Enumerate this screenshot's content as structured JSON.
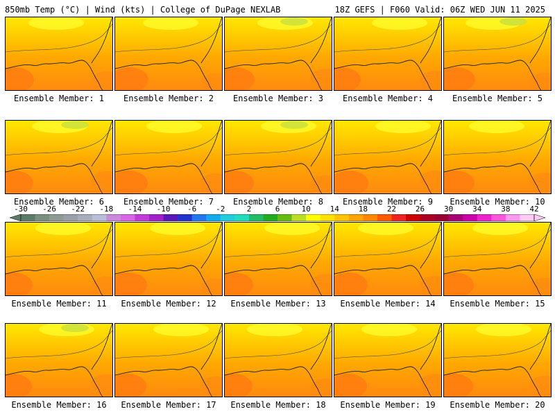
{
  "header": {
    "left": "850mb Temp (°C) | Wind (kts) | College of DuPage NEXLAB",
    "right": "18Z GEFS | F060 Valid: 06Z WED JUN 11 2025"
  },
  "colorbar": {
    "labels": [
      "-30",
      "-26",
      "-22",
      "-18",
      "-14",
      "-10",
      "-6",
      "-2",
      "2",
      "6",
      "10",
      "14",
      "18",
      "22",
      "26",
      "30",
      "34",
      "38",
      "42"
    ],
    "colors": [
      "#5e7a6a",
      "#7a8f80",
      "#8e9a94",
      "#9aa0a8",
      "#a7adbd",
      "#b7bfd8",
      "#cc88dd",
      "#d666e6",
      "#c23bd6",
      "#9e22c8",
      "#5a18b8",
      "#2233cc",
      "#2277ee",
      "#11aaee",
      "#22ccdd",
      "#22ddbb",
      "#22bb66",
      "#22aa22",
      "#66bb11",
      "#bbdd22",
      "#ffff00",
      "#ffe000",
      "#ffc400",
      "#ffa400",
      "#ff8800",
      "#ff5a00",
      "#ee2222",
      "#cc0000",
      "#aa0022",
      "#990033",
      "#aa0077",
      "#cc00aa",
      "#ee22cc",
      "#ff55dd",
      "#ff99ee",
      "#ffccf4"
    ]
  },
  "members": [
    {
      "label": "Ensemble Member: 1"
    },
    {
      "label": "Ensemble Member: 2"
    },
    {
      "label": "Ensemble Member: 3"
    },
    {
      "label": "Ensemble Member: 4"
    },
    {
      "label": "Ensemble Member: 5"
    },
    {
      "label": "Ensemble Member: 6"
    },
    {
      "label": "Ensemble Member: 7"
    },
    {
      "label": "Ensemble Member: 8"
    },
    {
      "label": "Ensemble Member: 9"
    },
    {
      "label": "Ensemble Member: 10"
    },
    {
      "label": "Ensemble Member: 11"
    },
    {
      "label": "Ensemble Member: 12"
    },
    {
      "label": "Ensemble Member: 13"
    },
    {
      "label": "Ensemble Member: 14"
    },
    {
      "label": "Ensemble Member: 15"
    },
    {
      "label": "Ensemble Member: 16"
    },
    {
      "label": "Ensemble Member: 17"
    },
    {
      "label": "Ensemble Member: 18"
    },
    {
      "label": "Ensemble Member: 19"
    },
    {
      "label": "Ensemble Member: 20"
    }
  ]
}
